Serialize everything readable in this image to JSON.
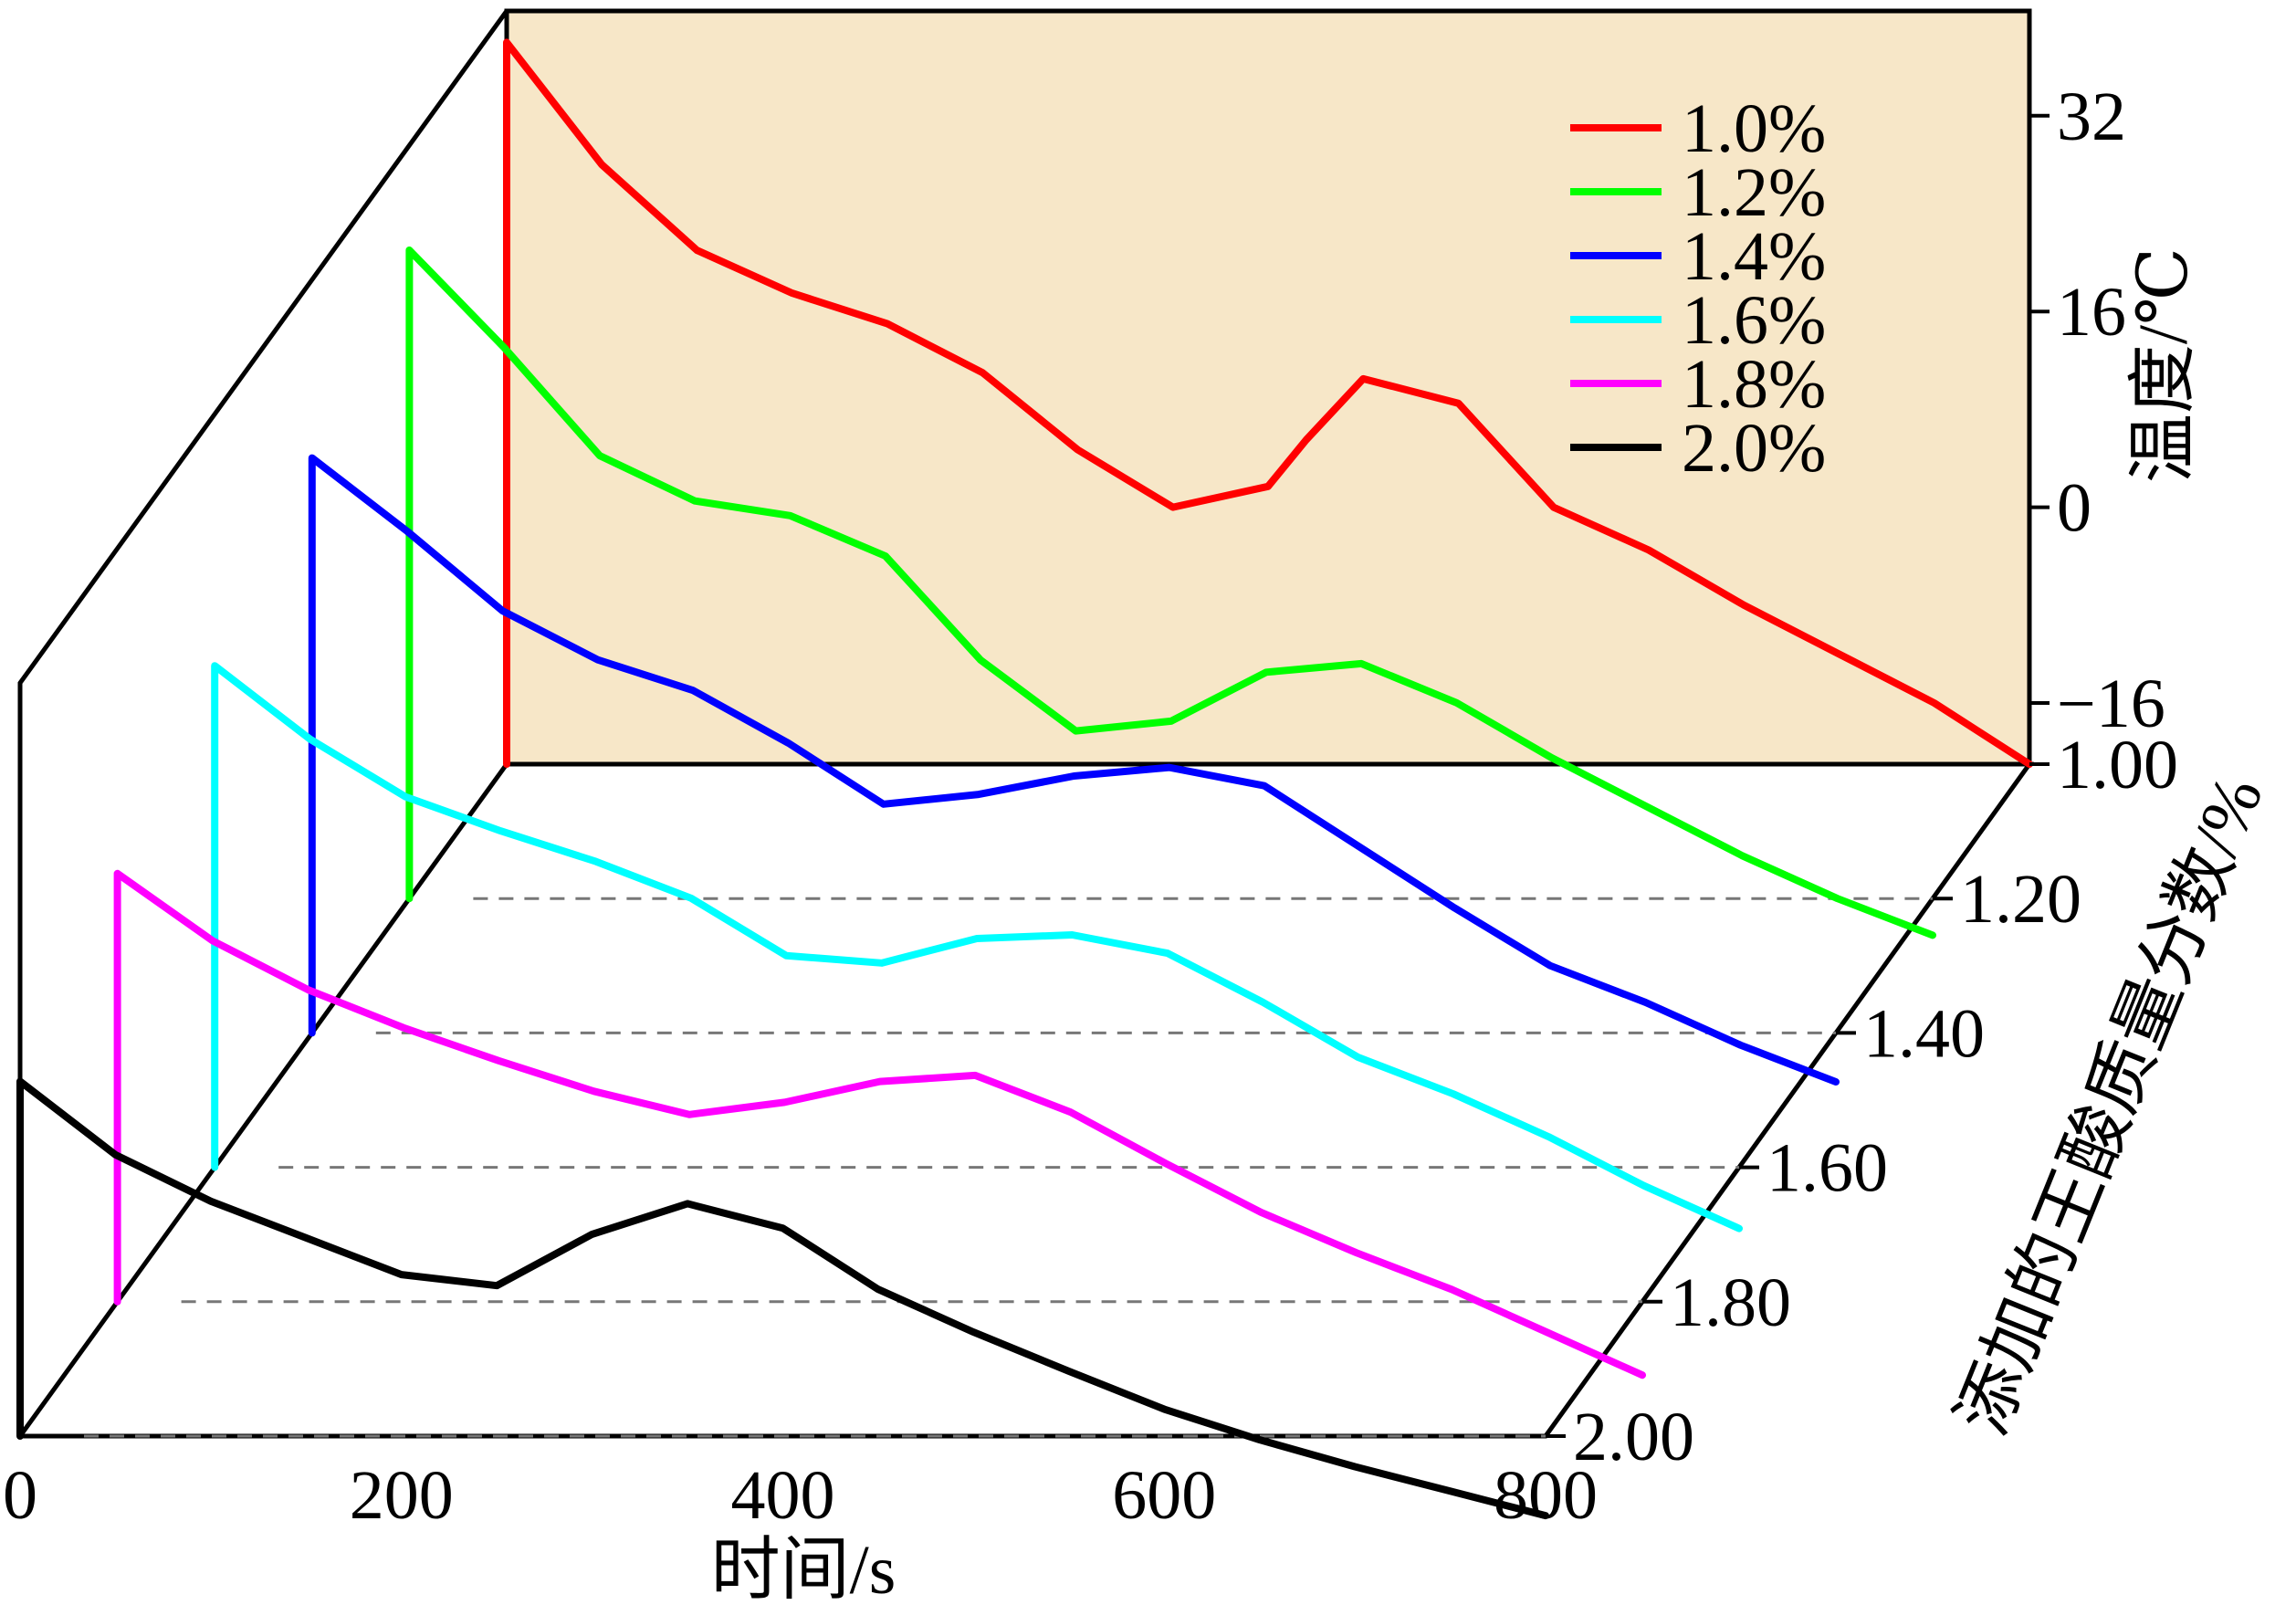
{
  "chart_data": {
    "type": "line",
    "subtype": "3d-waterfall",
    "x_axis": {
      "label": "时间/s",
      "ticks": [
        0,
        200,
        400,
        600,
        800
      ],
      "range": [
        0,
        800
      ]
    },
    "y_axis": {
      "label": "温度/℃",
      "ticks": [
        32,
        16,
        0,
        -16
      ],
      "tick_labels": [
        "32",
        "16",
        "0",
        "−16"
      ],
      "range": [
        -21,
        42
      ]
    },
    "z_axis": {
      "label": "添加的王酸质量分数/%",
      "ticks": [
        1.0,
        1.2,
        1.4,
        1.6,
        1.8,
        2.0
      ],
      "tick_labels": [
        "1.00",
        "1.20",
        "1.40",
        "1.60",
        "1.80",
        "2.00"
      ]
    },
    "legend": {
      "position": "top-right",
      "entries": [
        "1.0%",
        "1.2%",
        "1.4%",
        "1.6%",
        "1.8%",
        "2.0%"
      ]
    },
    "back_panel_color": "#f7e7c8",
    "series": [
      {
        "name": "1.0%",
        "z": 1.0,
        "color": "#ff0000",
        "x": [
          0,
          50,
          100,
          150,
          200,
          250,
          300,
          350,
          400,
          420,
          450,
          500,
          550,
          600,
          650,
          700,
          750,
          800
        ],
        "y": [
          38,
          28,
          21,
          17.5,
          15,
          11,
          4.7,
          0,
          1.7,
          5.5,
          10.5,
          8.5,
          0,
          -3.5,
          -8,
          -12,
          -16,
          -21
        ]
      },
      {
        "name": "1.2%",
        "z": 1.2,
        "color": "#00ff00",
        "x": [
          0,
          50,
          100,
          150,
          200,
          250,
          300,
          350,
          400,
          450,
          500,
          550,
          600,
          650,
          700,
          750,
          800
        ],
        "y": [
          32,
          24,
          15.2,
          11.5,
          10.3,
          7,
          -1.5,
          -7.3,
          -6.5,
          -2.5,
          -1.8,
          -5,
          -9.5,
          -13.5,
          -17.5,
          -21,
          -24
        ]
      },
      {
        "name": "1.4%",
        "z": 1.4,
        "color": "#0000ff",
        "x": [
          0,
          50,
          100,
          150,
          200,
          250,
          300,
          350,
          400,
          450,
          500,
          550,
          600,
          650,
          700,
          750,
          800
        ],
        "y": [
          26,
          20,
          13.5,
          9.5,
          7,
          2.7,
          -2.3,
          -1.5,
          0,
          0.7,
          -0.8,
          -5.8,
          -10.8,
          -15.5,
          -18.5,
          -22,
          -25
        ]
      },
      {
        "name": "1.6%",
        "z": 1.6,
        "color": "#00ffff",
        "x": [
          0,
          50,
          100,
          150,
          200,
          250,
          300,
          350,
          400,
          450,
          500,
          550,
          600,
          650,
          700,
          750,
          800
        ],
        "y": [
          20,
          14,
          9.3,
          6.5,
          4,
          1,
          -3.7,
          -4.3,
          -2.3,
          -2,
          -3.5,
          -7.5,
          -12,
          -15,
          -18.5,
          -22.5,
          -26
        ]
      },
      {
        "name": "1.8%",
        "z": 1.8,
        "color": "#ff00ff",
        "x": [
          0,
          50,
          100,
          150,
          200,
          250,
          300,
          350,
          400,
          450,
          500,
          550,
          600,
          650,
          700,
          750,
          800
        ],
        "y": [
          14,
          8.5,
          4.5,
          1.4,
          -1.3,
          -3.8,
          -5.7,
          -4.7,
          -3,
          -2.5,
          -5.5,
          -9.7,
          -13.7,
          -17,
          -20,
          -23.5,
          -27
        ]
      },
      {
        "name": "2.0%",
        "z": 2.0,
        "color": "#000000",
        "x": [
          0,
          50,
          100,
          150,
          200,
          250,
          300,
          350,
          400,
          450,
          500,
          550,
          600,
          650,
          700,
          750,
          800
        ],
        "y": [
          8,
          2,
          -1.8,
          -4.8,
          -7.8,
          -8.7,
          -4.5,
          -2,
          -4,
          -9,
          -12.5,
          -15.7,
          -18.8,
          -21.3,
          -23.5,
          -25.5,
          -27.5
        ]
      }
    ]
  }
}
